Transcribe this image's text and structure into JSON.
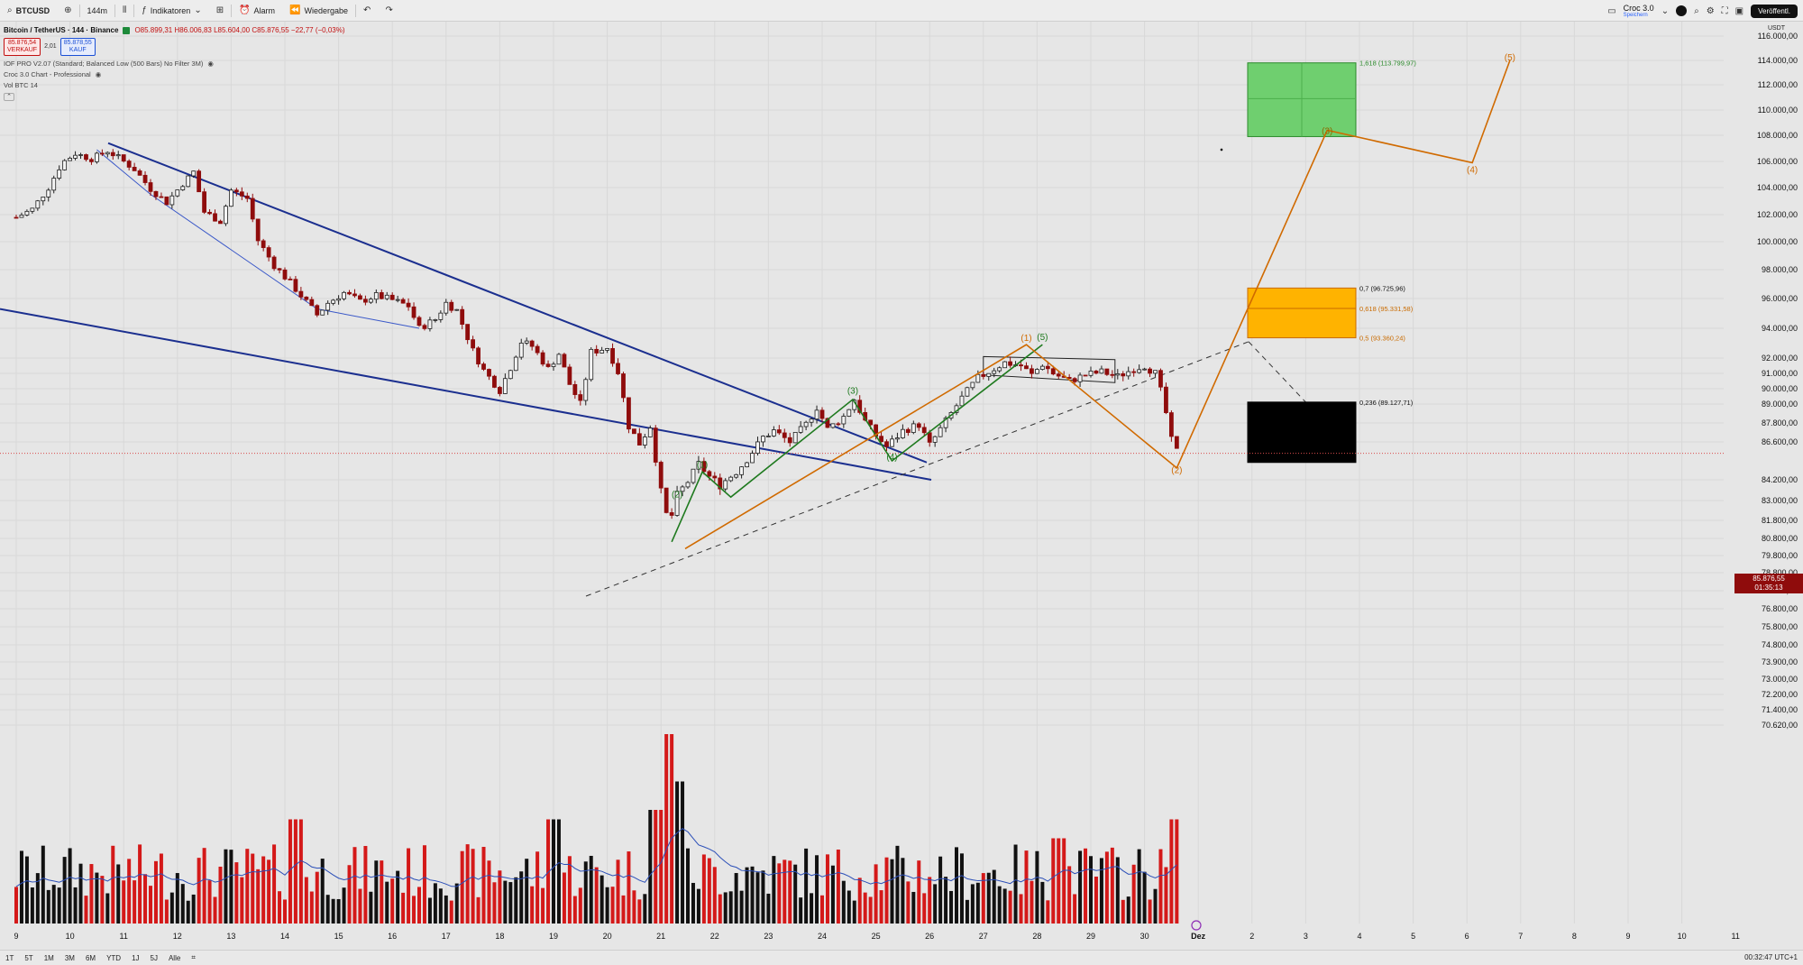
{
  "toolbar": {
    "symbol": "BTCUSD",
    "interval": "144m",
    "indicators_label": "Indikatoren",
    "alert_label": "Alarm",
    "replay_label": "Wiedergabe",
    "layout_name": "Croc 3.0",
    "layout_sub": "Speichern",
    "publish_label": "Veröffentl."
  },
  "legend": {
    "title": "Bitcoin / TetherUS · 144 · Binance",
    "ohlc": "O85.899,31 H86.006,83 L85.604,00 C85.876,55 −22,77 (−0,03%)",
    "sell_price": "85.876,54",
    "sell_label": "VERKAUF",
    "spread": "2,01",
    "buy_price": "85.878,55",
    "buy_label": "KAUF",
    "indicator_1": "IOF PRO V2.07 (Standard; Balanced Low (500 Bars) No Filter 3M)",
    "indicator_2": "Croc 3.0 Chart - Professional",
    "volume": "Vol  BTC 14"
  },
  "price_axis": {
    "unit": "USDT",
    "labels": [
      {
        "p": 116000,
        "t": "116.000,00"
      },
      {
        "p": 114000,
        "t": "114.000,00"
      },
      {
        "p": 112000,
        "t": "112.000,00"
      },
      {
        "p": 110000,
        "t": "110.000,00"
      },
      {
        "p": 108000,
        "t": "108.000,00"
      },
      {
        "p": 106000,
        "t": "106.000,00"
      },
      {
        "p": 104000,
        "t": "104.000,00"
      },
      {
        "p": 102000,
        "t": "102.000,00"
      },
      {
        "p": 100000,
        "t": "100.000,00"
      },
      {
        "p": 98000,
        "t": "98.000,00"
      },
      {
        "p": 96000,
        "t": "96.000,00"
      },
      {
        "p": 94000,
        "t": "94.000,00"
      },
      {
        "p": 92000,
        "t": "92.000,00"
      },
      {
        "p": 91000,
        "t": "91.000,00"
      },
      {
        "p": 90000,
        "t": "90.000,00"
      },
      {
        "p": 89000,
        "t": "89.000,00"
      },
      {
        "p": 87800,
        "t": "87.800,00"
      },
      {
        "p": 86600,
        "t": "86.600,00"
      },
      {
        "p": 84200,
        "t": "84.200,00"
      },
      {
        "p": 83000,
        "t": "83.000,00"
      },
      {
        "p": 81800,
        "t": "81.800,00"
      },
      {
        "p": 80800,
        "t": "80.800,00"
      },
      {
        "p": 79800,
        "t": "79.800,00"
      },
      {
        "p": 78800,
        "t": "78.800,00"
      },
      {
        "p": 77800,
        "t": "77.800,00"
      },
      {
        "p": 76800,
        "t": "76.800,00"
      },
      {
        "p": 75800,
        "t": "75.800,00"
      },
      {
        "p": 74800,
        "t": "74.800,00"
      },
      {
        "p": 73900,
        "t": "73.900,00"
      },
      {
        "p": 73000,
        "t": "73.000,00"
      },
      {
        "p": 72200,
        "t": "72.200,00"
      },
      {
        "p": 71400,
        "t": "71.400,00"
      },
      {
        "p": 70620,
        "t": "70.620,00"
      }
    ],
    "current_price": "85.876,55",
    "countdown": "01:35:13"
  },
  "time_axis": [
    {
      "t": "9",
      "d": 9
    },
    {
      "t": "10",
      "d": 10
    },
    {
      "t": "11",
      "d": 11
    },
    {
      "t": "12",
      "d": 12
    },
    {
      "t": "13",
      "d": 13
    },
    {
      "t": "14",
      "d": 14
    },
    {
      "t": "15",
      "d": 15
    },
    {
      "t": "16",
      "d": 16
    },
    {
      "t": "17",
      "d": 17
    },
    {
      "t": "18",
      "d": 18
    },
    {
      "t": "19",
      "d": 19
    },
    {
      "t": "20",
      "d": 20
    },
    {
      "t": "21",
      "d": 21
    },
    {
      "t": "22",
      "d": 22
    },
    {
      "t": "23",
      "d": 23
    },
    {
      "t": "24",
      "d": 24
    },
    {
      "t": "25",
      "d": 25
    },
    {
      "t": "26",
      "d": 26
    },
    {
      "t": "27",
      "d": 27
    },
    {
      "t": "28",
      "d": 28
    },
    {
      "t": "29",
      "d": 29
    },
    {
      "t": "30",
      "d": 30
    },
    {
      "t": "Dez",
      "d": 31
    },
    {
      "t": "2",
      "d": 32
    },
    {
      "t": "3",
      "d": 33
    },
    {
      "t": "4",
      "d": 34
    },
    {
      "t": "5",
      "d": 35
    },
    {
      "t": "6",
      "d": 36
    },
    {
      "t": "7",
      "d": 37
    },
    {
      "t": "8",
      "d": 38
    },
    {
      "t": "9",
      "d": 39
    },
    {
      "t": "10",
      "d": 40
    },
    {
      "t": "11",
      "d": 41
    }
  ],
  "ranges": [
    "1T",
    "5T",
    "1M",
    "3M",
    "6M",
    "YTD",
    "1J",
    "5J",
    "Alle"
  ],
  "clock": "00:32:47 UTC+1",
  "fib": [
    {
      "t": "1,618 (113.799,97)",
      "color": "#2b8a2b",
      "p": 113800
    },
    {
      "t": "0,7 (96.725,96)",
      "color": "#111111",
      "p": 96726
    },
    {
      "t": "0,618 (95.331,58)",
      "color": "#c96b00",
      "p": 95332
    },
    {
      "t": "0,5 (93.360,24)",
      "color": "#c96b00",
      "p": 93360
    },
    {
      "t": "0,236 (89.127,71)",
      "color": "#111111",
      "p": 89128
    }
  ],
  "waves": [
    {
      "t": "(1)",
      "d": 21.77,
      "p": 85200,
      "c": "#1f7a1f"
    },
    {
      "t": "(2)",
      "d": 21.3,
      "p": 83400,
      "c": "#1f7a1f"
    },
    {
      "t": "(3)",
      "d": 24.57,
      "p": 89900,
      "c": "#1f7a1f"
    },
    {
      "t": "(4)",
      "d": 25.3,
      "p": 85700,
      "c": "#1f7a1f"
    },
    {
      "t": "(5)",
      "d": 28.1,
      "p": 93450,
      "c": "#1f7a1f"
    },
    {
      "t": "(1)",
      "d": 27.8,
      "p": 93400,
      "c": "#d06a00"
    },
    {
      "t": "(2)",
      "d": 30.6,
      "p": 84850,
      "c": "#d06a00"
    },
    {
      "t": "(3)",
      "d": 33.4,
      "p": 108400,
      "c": "#8a6a00"
    },
    {
      "t": "(4)",
      "d": 36.1,
      "p": 105400,
      "c": "#d06a00"
    },
    {
      "t": "(5)",
      "d": 36.8,
      "p": 114300,
      "c": "#d06a00"
    }
  ],
  "chart_data": {
    "type": "candlestick",
    "symbol": "BTCUSD",
    "interval": "144m",
    "ylim": [
      70620,
      116800
    ],
    "colors": {
      "up": "#1f1f1f",
      "down": "#8f0c0c",
      "vol_up": "#111111",
      "vol_down": "#d41919",
      "ma": "#2b4fb8"
    },
    "closes_path": [
      [
        9.0,
        101800
      ],
      [
        9.3,
        102400
      ],
      [
        9.6,
        104000
      ],
      [
        9.85,
        105900
      ],
      [
        10.1,
        106600
      ],
      [
        10.4,
        106200
      ],
      [
        10.7,
        106800
      ],
      [
        10.9,
        106300
      ],
      [
        11.2,
        105400
      ],
      [
        11.5,
        103900
      ],
      [
        11.8,
        102900
      ],
      [
        12.1,
        104300
      ],
      [
        12.3,
        105200
      ],
      [
        12.5,
        102200
      ],
      [
        12.8,
        101500
      ],
      [
        13.0,
        103800
      ],
      [
        13.3,
        103200
      ],
      [
        13.5,
        100100
      ],
      [
        13.8,
        98300
      ],
      [
        14.1,
        97100
      ],
      [
        14.3,
        96200
      ],
      [
        14.6,
        94900
      ],
      [
        14.8,
        95700
      ],
      [
        15.1,
        96400
      ],
      [
        15.4,
        95800
      ],
      [
        15.7,
        96200
      ],
      [
        16.0,
        95900
      ],
      [
        16.3,
        95500
      ],
      [
        16.5,
        94000
      ],
      [
        16.8,
        94600
      ],
      [
        17.0,
        95700
      ],
      [
        17.2,
        95200
      ],
      [
        17.5,
        92500
      ],
      [
        17.7,
        91200
      ],
      [
        18.0,
        89900
      ],
      [
        18.2,
        91400
      ],
      [
        18.4,
        93100
      ],
      [
        18.6,
        92800
      ],
      [
        18.9,
        91300
      ],
      [
        19.1,
        92300
      ],
      [
        19.3,
        90300
      ],
      [
        19.5,
        89000
      ],
      [
        19.7,
        92400
      ],
      [
        20.0,
        92700
      ],
      [
        20.2,
        91100
      ],
      [
        20.4,
        87600
      ],
      [
        20.6,
        86500
      ],
      [
        20.8,
        87600
      ],
      [
        21.0,
        83500
      ],
      [
        21.15,
        81500
      ],
      [
        21.3,
        83300
      ],
      [
        21.5,
        84100
      ],
      [
        21.7,
        85200
      ],
      [
        21.9,
        84400
      ],
      [
        22.1,
        83900
      ],
      [
        22.4,
        84700
      ],
      [
        22.6,
        85500
      ],
      [
        22.9,
        86900
      ],
      [
        23.1,
        87300
      ],
      [
        23.4,
        86600
      ],
      [
        23.7,
        87700
      ],
      [
        23.9,
        88800
      ],
      [
        24.1,
        87400
      ],
      [
        24.4,
        88200
      ],
      [
        24.6,
        89300
      ],
      [
        24.8,
        87900
      ],
      [
        25.0,
        87000
      ],
      [
        25.2,
        86300
      ],
      [
        25.5,
        87300
      ],
      [
        25.8,
        87700
      ],
      [
        26.0,
        86400
      ],
      [
        26.3,
        87900
      ],
      [
        26.6,
        89400
      ],
      [
        26.9,
        90700
      ],
      [
        27.2,
        91300
      ],
      [
        27.4,
        91700
      ],
      [
        27.7,
        91500
      ],
      [
        27.9,
        90900
      ],
      [
        28.1,
        91600
      ],
      [
        28.3,
        91000
      ],
      [
        28.6,
        90500
      ],
      [
        28.9,
        90900
      ],
      [
        29.2,
        91100
      ],
      [
        29.5,
        90800
      ],
      [
        29.8,
        91300
      ],
      [
        30.0,
        91500
      ],
      [
        30.2,
        91000
      ],
      [
        30.35,
        89300
      ],
      [
        30.5,
        86700
      ],
      [
        30.62,
        85877
      ]
    ],
    "volume_peaks": [
      [
        14.2,
        0.55
      ],
      [
        19.0,
        0.55
      ],
      [
        20.9,
        0.6
      ],
      [
        21.2,
        1.0
      ],
      [
        21.35,
        0.75
      ],
      [
        28.4,
        0.45
      ],
      [
        30.6,
        0.55
      ]
    ]
  }
}
